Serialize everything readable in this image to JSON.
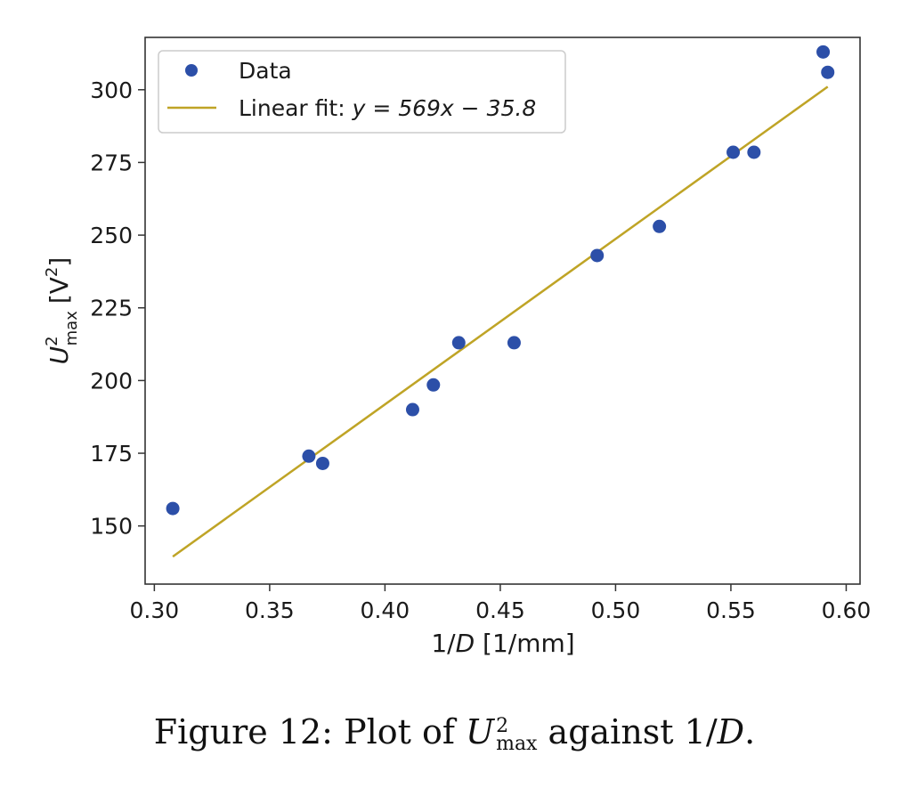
{
  "chart_data": {
    "type": "scatter",
    "title": "",
    "xlabel_prefix": "1/",
    "xlabel_var": "D",
    "xlabel_unit": " [1/mm]",
    "ylabel_var": "U",
    "ylabel_sup": "2",
    "ylabel_sub": "max",
    "ylabel_unit_open": "[V",
    "ylabel_unit_sup": "2",
    "ylabel_unit_close": "]",
    "xlim": [
      0.296,
      0.606
    ],
    "ylim": [
      130,
      318
    ],
    "xticks": [
      0.3,
      0.35,
      0.4,
      0.45,
      0.5,
      0.55,
      0.6
    ],
    "xtick_labels": [
      "0.30",
      "0.35",
      "0.40",
      "0.45",
      "0.50",
      "0.55",
      "0.60"
    ],
    "yticks": [
      150,
      175,
      200,
      225,
      250,
      275,
      300
    ],
    "ytick_labels": [
      "150",
      "175",
      "200",
      "225",
      "250",
      "275",
      "300"
    ],
    "grid": false,
    "legend_position": "top-left",
    "series": [
      {
        "name": "Data",
        "kind": "scatter",
        "color": "#2c4fa8",
        "x": [
          0.308,
          0.367,
          0.373,
          0.412,
          0.421,
          0.432,
          0.456,
          0.492,
          0.519,
          0.551,
          0.56,
          0.59,
          0.592
        ],
        "y": [
          156,
          174,
          171.5,
          190,
          198.5,
          213,
          213,
          243,
          253,
          278.5,
          278.5,
          313,
          306
        ]
      },
      {
        "name_prefix": "Linear fit: ",
        "name_formula": "y = 569x − 35.8",
        "kind": "line",
        "color": "#bfa426",
        "slope": 569,
        "intercept": -35.8,
        "x_range": [
          0.308,
          0.592
        ]
      }
    ]
  },
  "caption": {
    "prefix": "Figure 12: Plot of ",
    "var_u": "U",
    "u_sup": "2",
    "u_sub": "max",
    "middle": " against ",
    "frac_num": "1/",
    "var_d": "D",
    "end": "."
  }
}
